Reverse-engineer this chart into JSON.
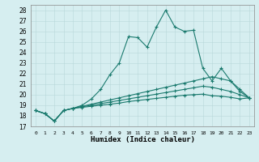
{
  "xlabel": "Humidex (Indice chaleur)",
  "background_color": "#d6eef0",
  "line_color": "#1a7a6e",
  "grid_color": "#ffffff",
  "grid_line_color": "#ccdddd",
  "xlim": [
    -0.5,
    23.5
  ],
  "ylim": [
    17,
    28.5
  ],
  "yticks": [
    17,
    18,
    19,
    20,
    21,
    22,
    23,
    24,
    25,
    26,
    27,
    28
  ],
  "xticks": [
    0,
    1,
    2,
    3,
    4,
    5,
    6,
    7,
    8,
    9,
    10,
    11,
    12,
    13,
    14,
    15,
    16,
    17,
    18,
    19,
    20,
    21,
    22,
    23
  ],
  "series": [
    [
      18.5,
      18.2,
      17.5,
      18.5,
      18.7,
      19.0,
      19.6,
      20.5,
      21.9,
      23.0,
      25.5,
      25.4,
      24.5,
      26.4,
      28.0,
      26.4,
      26.0,
      26.1,
      22.5,
      21.3,
      22.5,
      21.3,
      20.3,
      19.7
    ],
    [
      18.5,
      18.2,
      17.5,
      18.5,
      18.7,
      18.9,
      19.1,
      19.3,
      19.5,
      19.7,
      19.9,
      20.1,
      20.3,
      20.5,
      20.7,
      20.9,
      21.1,
      21.3,
      21.5,
      21.7,
      21.5,
      21.3,
      20.5,
      19.7
    ],
    [
      18.5,
      18.2,
      17.5,
      18.5,
      18.7,
      18.85,
      19.0,
      19.15,
      19.3,
      19.45,
      19.6,
      19.75,
      19.9,
      20.05,
      20.2,
      20.35,
      20.5,
      20.65,
      20.8,
      20.7,
      20.5,
      20.3,
      20.0,
      19.7
    ],
    [
      18.5,
      18.2,
      17.5,
      18.5,
      18.7,
      18.8,
      18.9,
      19.0,
      19.1,
      19.2,
      19.35,
      19.45,
      19.55,
      19.65,
      19.75,
      19.85,
      19.95,
      20.0,
      20.05,
      19.9,
      19.85,
      19.75,
      19.6,
      19.7
    ]
  ]
}
